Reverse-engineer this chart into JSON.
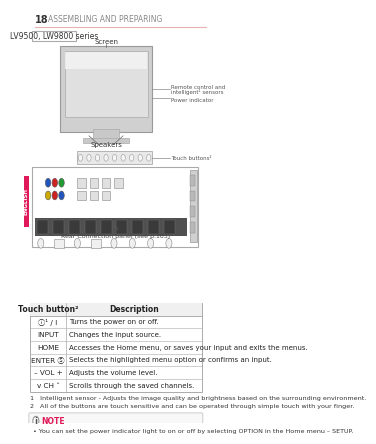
{
  "page_num": "18",
  "page_title": "ASSEMBLING AND PREPARING",
  "series_label": "LV9500, LW9800 series",
  "rear_panel_label": "Rear Connection panel (see p.103)",
  "table_header": [
    "Touch button²",
    "Description"
  ],
  "table_rows": [
    [
      "ⓘ¹ / I",
      "Turns the power on or off."
    ],
    [
      "INPUT",
      "Changes the input source."
    ],
    [
      "HOME",
      "Accesses the Home menu, or saves your input and exits the menus."
    ],
    [
      "ENTER Ⓢ",
      "Selects the highlighted menu option or confirms an input."
    ],
    [
      "– VOL +",
      "Adjusts the volume level."
    ],
    [
      "v CH ˄",
      "Scrolls through the saved channels."
    ]
  ],
  "footnote1": "1   Intelligent sensor - Adjusts the image quality and brightness based on the surrounding environment.",
  "footnote2": "2   All of the buttons are touch sensitive and can be operated through simple touch with your finger.",
  "note_title": "NOTE",
  "note_text": "• You can set the power indicator light to on or off by selecting OPTION in the Home menu – SETUP.",
  "bg_color": "#ffffff",
  "header_line_color": "#e8b0b0",
  "table_border_color": "#aaaaaa",
  "table_header_bg": "#f0f0f0",
  "note_bg": "#f8f8f8",
  "note_border": "#cccccc",
  "english_tab_color": "#e0195a",
  "accent_color": "#e0195a",
  "series_tag_border": "#aaaaaa",
  "page_num_color": "#333333",
  "title_color": "#888888"
}
